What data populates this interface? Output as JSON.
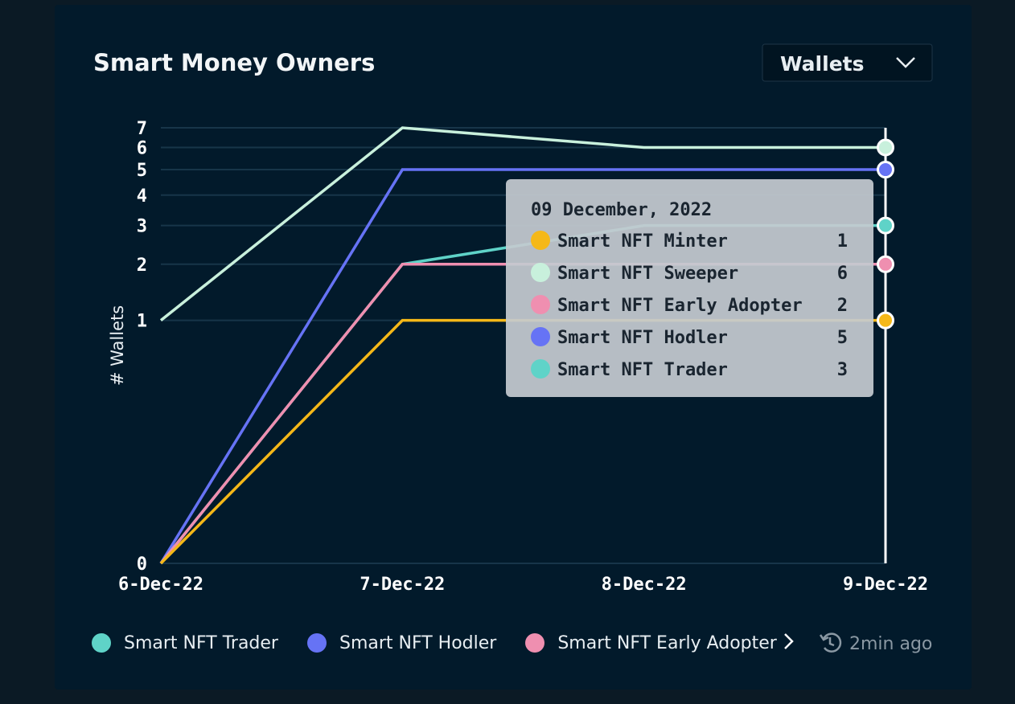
{
  "chart_data": {
    "type": "line",
    "title": "Smart Money Owners",
    "selector": "Wallets",
    "y_label": "# Wallets",
    "x": [
      "6-Dec-22",
      "7-Dec-22",
      "8-Dec-22",
      "9-Dec-22"
    ],
    "series": [
      {
        "name": "Smart NFT Minter",
        "color": "#f5b818",
        "values": [
          0,
          1,
          1,
          1
        ]
      },
      {
        "name": "Smart NFT Sweeper",
        "color": "#c8f0dc",
        "values": [
          1,
          7,
          6,
          6
        ]
      },
      {
        "name": "Smart NFT Early Adopter",
        "color": "#ef8fb0",
        "values": [
          0,
          2,
          2,
          2
        ]
      },
      {
        "name": "Smart NFT Hodler",
        "color": "#6673f5",
        "values": [
          0,
          5,
          5,
          5
        ]
      },
      {
        "name": "Smart NFT Trader",
        "color": "#5fd3c8",
        "values": [
          0,
          2,
          3,
          3
        ]
      }
    ],
    "yscale": "pow",
    "exponent": 0.3,
    "ylim": [
      0,
      7
    ],
    "yticks": [
      0,
      1,
      2,
      3,
      4,
      5,
      6,
      7
    ],
    "grid": true,
    "tooltip": {
      "title": "09 December, 2022",
      "index": 3
    },
    "updated": "2min ago"
  }
}
